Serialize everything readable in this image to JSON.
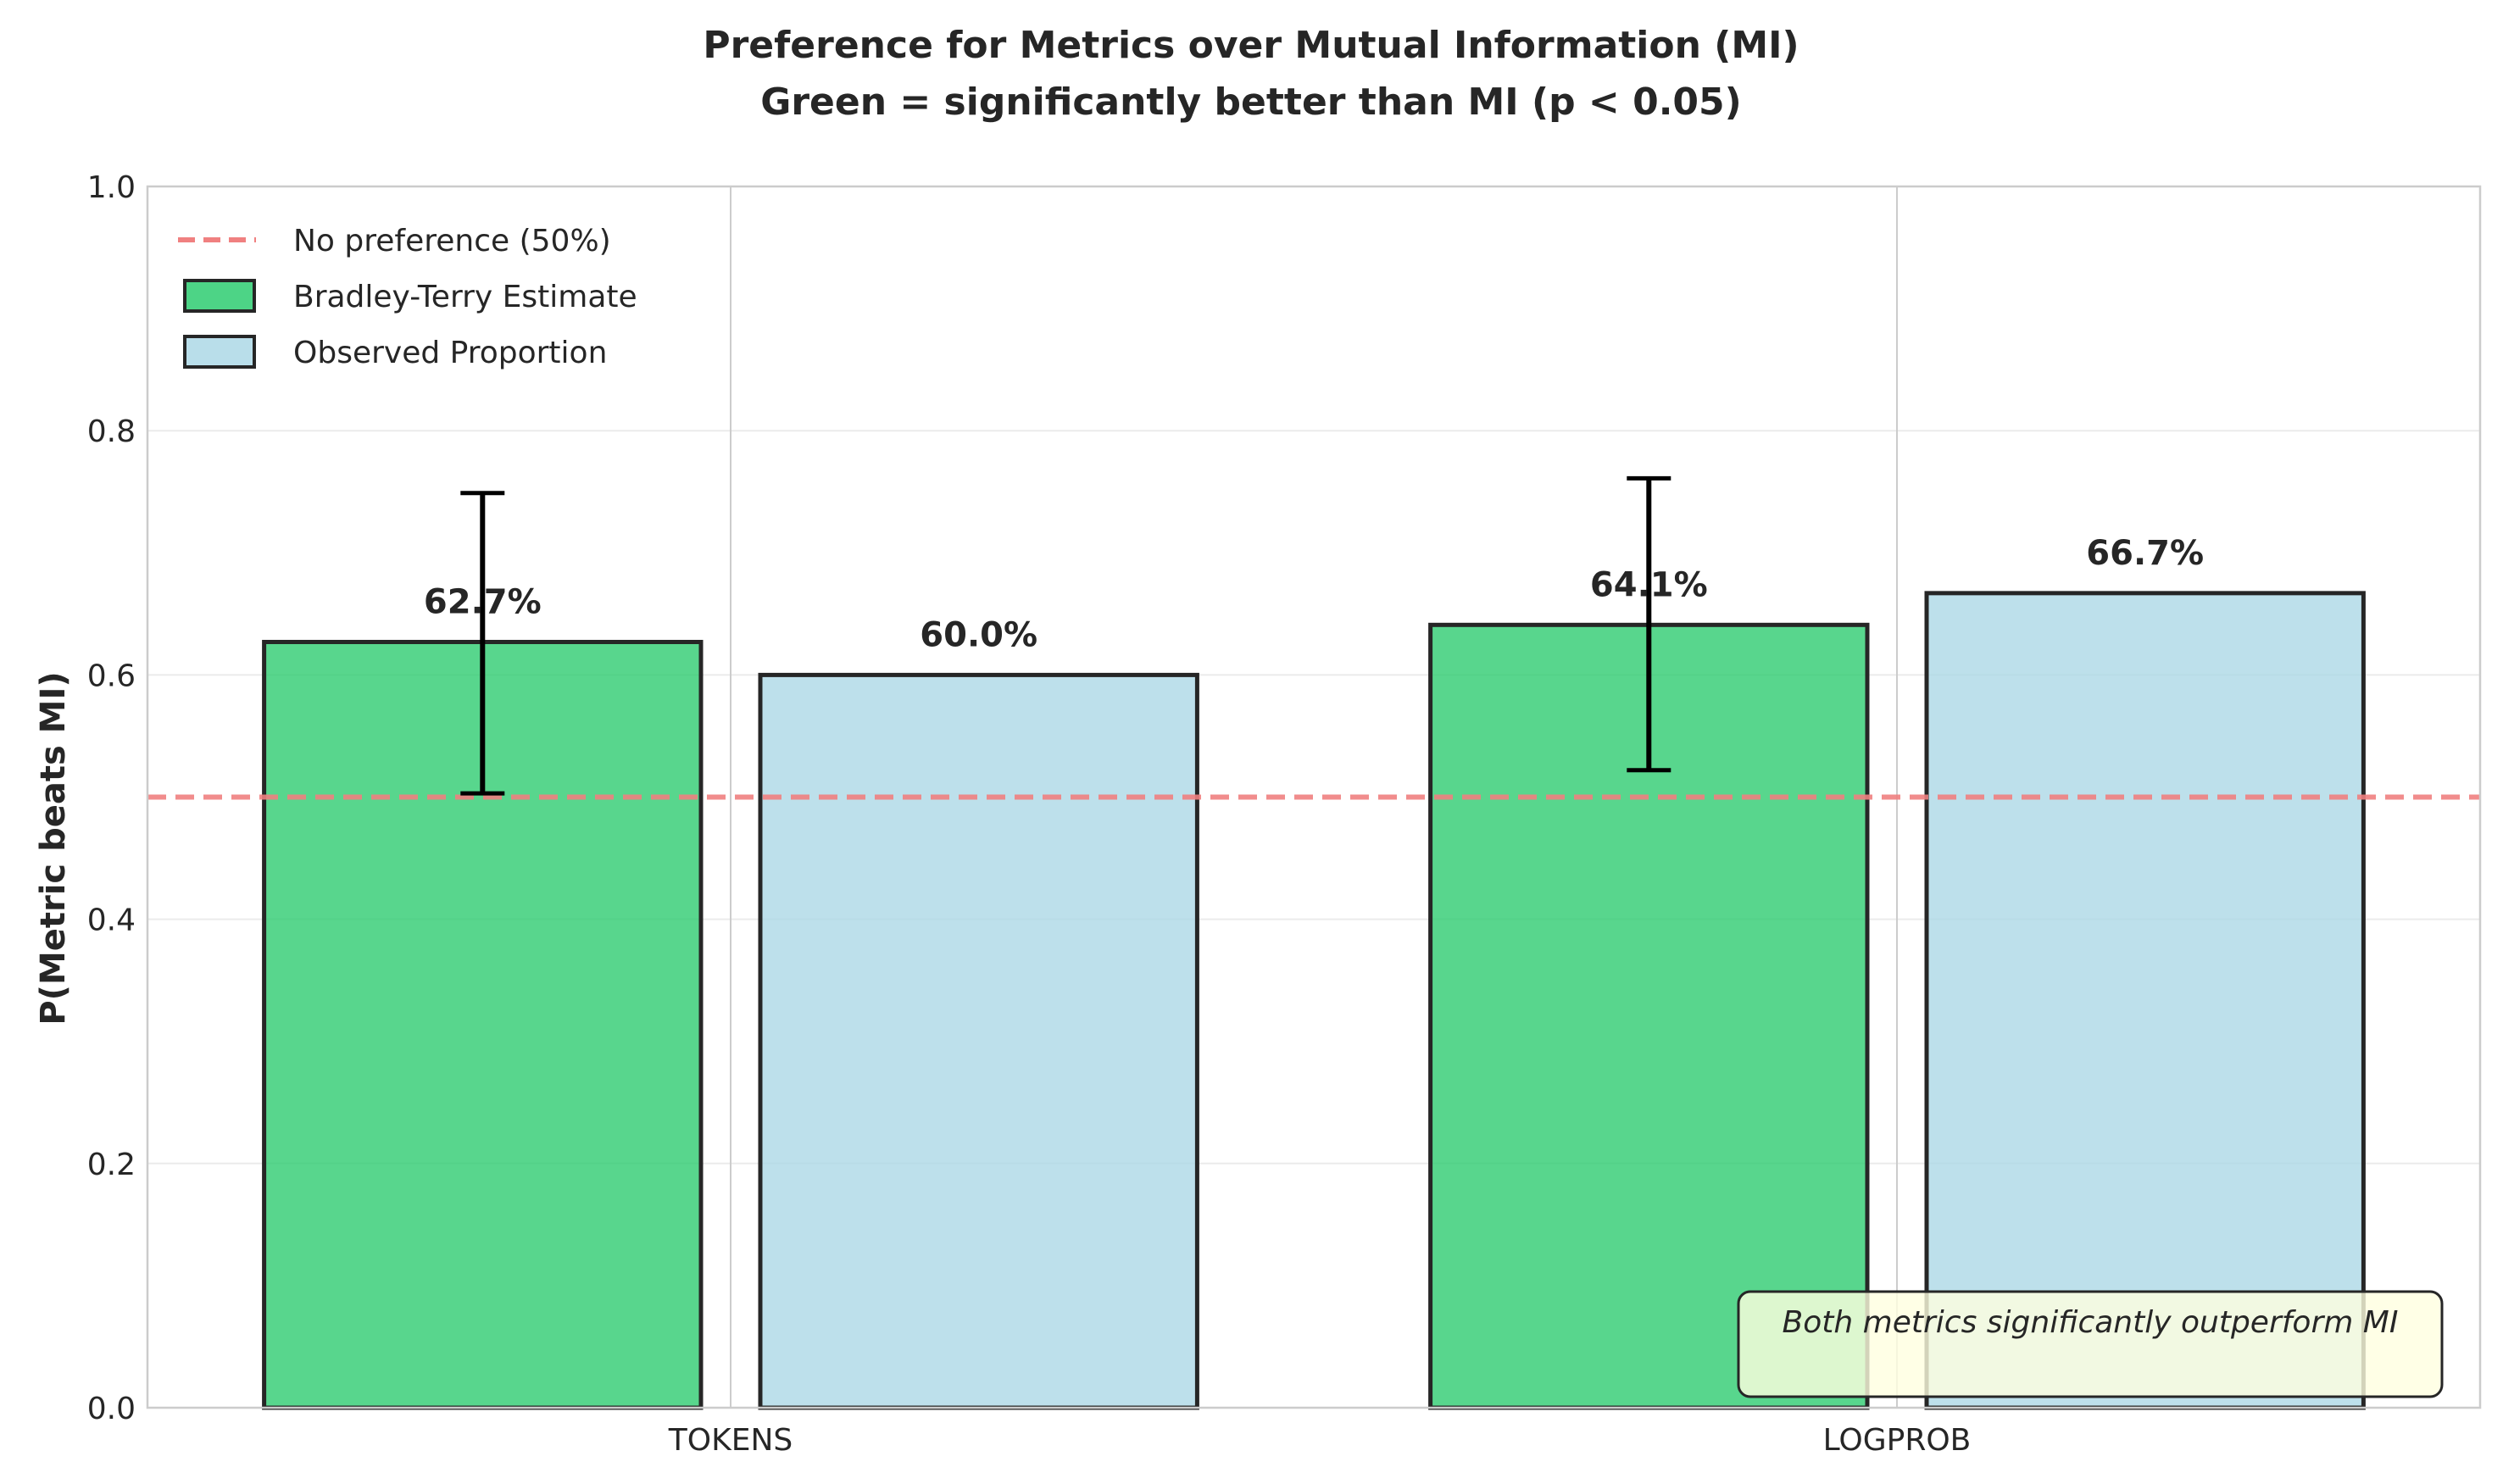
{
  "chart_data": {
    "type": "bar",
    "title": "Preference for Metrics over Mutual Information (MI)",
    "subtitle": "Green = significantly better than MI (p < 0.05)",
    "xlabel": "",
    "ylabel": "P(Metric beats MI)",
    "ylim": [
      0,
      1
    ],
    "yticks": [
      "0.0",
      "0.2",
      "0.4",
      "0.6",
      "0.8",
      "1.0"
    ],
    "categories": [
      "TOKENS",
      "LOGPROB"
    ],
    "series": [
      {
        "name": "Bradley-Terry Estimate",
        "color": "#2ecc71",
        "values": [
          0.627,
          0.641
        ],
        "labels": [
          "62.7%",
          "64.1%"
        ],
        "error_low": [
          0.503,
          0.522
        ],
        "error_high": [
          0.749,
          0.761
        ]
      },
      {
        "name": "Observed Proportion",
        "color": "#add8e6",
        "values": [
          0.6,
          0.667
        ],
        "labels": [
          "60.0%",
          "66.7%"
        ]
      }
    ],
    "reference_line": {
      "label": "No preference (50%)",
      "value": 0.5,
      "color": "#f08080"
    },
    "annotation": "Both metrics significantly outperform MI",
    "grid": true,
    "legend_position": "top-left"
  }
}
